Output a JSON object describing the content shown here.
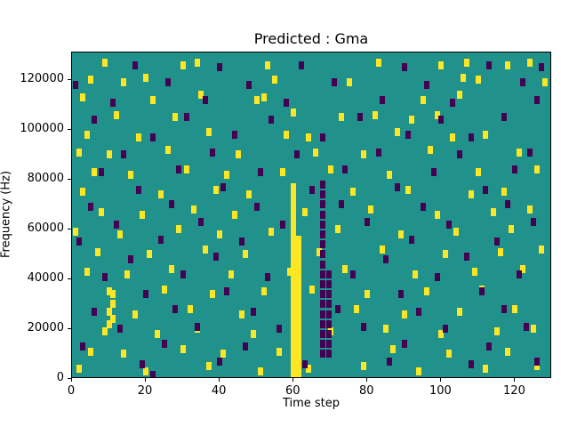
{
  "chart_data": {
    "type": "heatmap",
    "title": "Predicted : Gma",
    "xlabel": "Time step",
    "ylabel": "Frequency (Hz)",
    "xlim": [
      0,
      130
    ],
    "ylim": [
      0,
      131000
    ],
    "x_ticks": [
      0,
      20,
      40,
      60,
      80,
      100,
      120
    ],
    "y_ticks": [
      0,
      20000,
      40000,
      60000,
      80000,
      100000,
      120000
    ],
    "grid": false,
    "legend": "none",
    "colors": {
      "background_mid": "#21918c",
      "high": "#fde725",
      "low": "#440154",
      "axis": "#000000"
    },
    "cells": {
      "yellow": [
        [
          60,
          2000
        ],
        [
          60,
          5000
        ],
        [
          60,
          8000
        ],
        [
          60,
          11000
        ],
        [
          60,
          14000
        ],
        [
          60,
          17000
        ],
        [
          60,
          20000
        ],
        [
          60,
          23000
        ],
        [
          60,
          26000
        ],
        [
          60,
          29000
        ],
        [
          60,
          32000
        ],
        [
          60,
          35000
        ],
        [
          60,
          38000
        ],
        [
          60,
          41000
        ],
        [
          60,
          44000
        ],
        [
          60,
          47000
        ],
        [
          60,
          50000
        ],
        [
          60,
          53000
        ],
        [
          60,
          56000
        ],
        [
          60,
          59000
        ],
        [
          60,
          62000
        ],
        [
          60,
          65000
        ],
        [
          60,
          68000
        ],
        [
          60,
          71000
        ],
        [
          60,
          74000
        ],
        [
          60,
          77000
        ],
        [
          61.5,
          2000
        ],
        [
          61.5,
          5000
        ],
        [
          61.5,
          8000
        ],
        [
          61.5,
          11000
        ],
        [
          61.5,
          14000
        ],
        [
          61.5,
          17000
        ],
        [
          61.5,
          20000
        ],
        [
          61.5,
          23000
        ],
        [
          61.5,
          26000
        ],
        [
          61.5,
          29000
        ],
        [
          61.5,
          32000
        ],
        [
          61.5,
          35000
        ],
        [
          61.5,
          38000
        ],
        [
          61.5,
          41000
        ],
        [
          61.5,
          44000
        ],
        [
          61.5,
          47000
        ],
        [
          61.5,
          50000
        ],
        [
          61.5,
          53000
        ],
        [
          61.5,
          56000
        ],
        [
          9,
          127000
        ],
        [
          30,
          126000
        ],
        [
          34,
          127000
        ],
        [
          53,
          126000
        ],
        [
          83,
          127000
        ],
        [
          100,
          126000
        ],
        [
          107,
          127000
        ],
        [
          118,
          126000
        ],
        [
          124,
          127000
        ],
        [
          5,
          120000
        ],
        [
          14,
          119000
        ],
        [
          20,
          121000
        ],
        [
          55,
          120000
        ],
        [
          75,
          119000
        ],
        [
          106,
          121000
        ],
        [
          110,
          120000
        ],
        [
          128,
          119000
        ],
        [
          3,
          113000
        ],
        [
          22,
          112000
        ],
        [
          35,
          114000
        ],
        [
          50,
          112000
        ],
        [
          52,
          113000
        ],
        [
          95,
          112000
        ],
        [
          105,
          114000
        ],
        [
          12,
          106000
        ],
        [
          28,
          105000
        ],
        [
          60,
          107000
        ],
        [
          73,
          105000
        ],
        [
          82,
          106000
        ],
        [
          92,
          104000
        ],
        [
          99,
          106000
        ],
        [
          4,
          98000
        ],
        [
          18,
          97000
        ],
        [
          37,
          99000
        ],
        [
          58,
          98000
        ],
        [
          64,
          97000
        ],
        [
          88,
          99000
        ],
        [
          103,
          97000
        ],
        [
          112,
          98000
        ],
        [
          2,
          91000
        ],
        [
          10,
          90000
        ],
        [
          26,
          92000
        ],
        [
          45,
          90000
        ],
        [
          66,
          91000
        ],
        [
          79,
          90000
        ],
        [
          97,
          92000
        ],
        [
          121,
          91000
        ],
        [
          6,
          83000
        ],
        [
          16,
          82000
        ],
        [
          31,
          84000
        ],
        [
          42,
          82000
        ],
        [
          57,
          83000
        ],
        [
          70,
          84000
        ],
        [
          86,
          82000
        ],
        [
          110,
          83000
        ],
        [
          126,
          84000
        ],
        [
          3,
          75000
        ],
        [
          24,
          74000
        ],
        [
          39,
          76000
        ],
        [
          48,
          74000
        ],
        [
          76,
          75000
        ],
        [
          91,
          76000
        ],
        [
          108,
          74000
        ],
        [
          117,
          75000
        ],
        [
          8,
          67000
        ],
        [
          19,
          66000
        ],
        [
          33,
          68000
        ],
        [
          44,
          66000
        ],
        [
          63,
          67000
        ],
        [
          81,
          68000
        ],
        [
          99,
          66000
        ],
        [
          114,
          67000
        ],
        [
          124,
          68000
        ],
        [
          1,
          59000
        ],
        [
          13,
          58000
        ],
        [
          29,
          60000
        ],
        [
          40,
          58000
        ],
        [
          54,
          59000
        ],
        [
          72,
          60000
        ],
        [
          89,
          58000
        ],
        [
          104,
          59000
        ],
        [
          119,
          60000
        ],
        [
          7,
          51000
        ],
        [
          21,
          50000
        ],
        [
          36,
          52000
        ],
        [
          47,
          50000
        ],
        [
          67,
          51000
        ],
        [
          84,
          52000
        ],
        [
          101,
          50000
        ],
        [
          116,
          51000
        ],
        [
          127,
          52000
        ],
        [
          4,
          43000
        ],
        [
          15,
          42000
        ],
        [
          27,
          44000
        ],
        [
          43,
          42000
        ],
        [
          59,
          43000
        ],
        [
          74,
          44000
        ],
        [
          93,
          42000
        ],
        [
          109,
          43000
        ],
        [
          122,
          44000
        ],
        [
          10,
          35000
        ],
        [
          11,
          34000
        ],
        [
          25,
          36000
        ],
        [
          38,
          34000
        ],
        [
          52,
          35000
        ],
        [
          65,
          36000
        ],
        [
          80,
          34000
        ],
        [
          96,
          35000
        ],
        [
          111,
          36000
        ],
        [
          10,
          27000
        ],
        [
          11,
          30000
        ],
        [
          11,
          24000
        ],
        [
          17,
          26000
        ],
        [
          32,
          28000
        ],
        [
          46,
          26000
        ],
        [
          77,
          28000
        ],
        [
          90,
          26000
        ],
        [
          105,
          27000
        ],
        [
          120,
          28000
        ],
        [
          9,
          19000
        ],
        [
          10,
          22000
        ],
        [
          23,
          18000
        ],
        [
          34,
          20000
        ],
        [
          49,
          18000
        ],
        [
          70,
          19000
        ],
        [
          85,
          20000
        ],
        [
          100,
          18000
        ],
        [
          115,
          19000
        ],
        [
          125,
          20000
        ],
        [
          5,
          11000
        ],
        [
          14,
          10000
        ],
        [
          30,
          12000
        ],
        [
          41,
          10000
        ],
        [
          56,
          11000
        ],
        [
          87,
          12000
        ],
        [
          102,
          10000
        ],
        [
          118,
          11000
        ],
        [
          2,
          4000
        ],
        [
          20,
          3000
        ],
        [
          37,
          5000
        ],
        [
          51,
          3000
        ],
        [
          64,
          4000
        ],
        [
          79,
          5000
        ],
        [
          94,
          3000
        ],
        [
          112,
          4000
        ],
        [
          126,
          5000
        ]
      ],
      "purple": [
        [
          68,
          10000
        ],
        [
          68,
          14000
        ],
        [
          68,
          18000
        ],
        [
          68,
          22000
        ],
        [
          68,
          26000
        ],
        [
          68,
          30000
        ],
        [
          68,
          34000
        ],
        [
          68,
          38000
        ],
        [
          68,
          42000
        ],
        [
          68,
          46000
        ],
        [
          68,
          50000
        ],
        [
          68,
          54000
        ],
        [
          68,
          58000
        ],
        [
          68,
          62000
        ],
        [
          68,
          66000
        ],
        [
          68,
          70000
        ],
        [
          68,
          74000
        ],
        [
          68,
          78000
        ],
        [
          69.5,
          10000
        ],
        [
          69.5,
          14000
        ],
        [
          69.5,
          18000
        ],
        [
          69.5,
          22000
        ],
        [
          69.5,
          26000
        ],
        [
          69.5,
          30000
        ],
        [
          69.5,
          34000
        ],
        [
          69.5,
          38000
        ],
        [
          69.5,
          42000
        ],
        [
          17,
          126000
        ],
        [
          40,
          125000
        ],
        [
          62,
          126000
        ],
        [
          90,
          125000
        ],
        [
          113,
          126000
        ],
        [
          127,
          125000
        ],
        [
          1,
          118000
        ],
        [
          26,
          119000
        ],
        [
          48,
          118000
        ],
        [
          71,
          119000
        ],
        [
          96,
          118000
        ],
        [
          122,
          119000
        ],
        [
          11,
          111000
        ],
        [
          36,
          112000
        ],
        [
          58,
          111000
        ],
        [
          84,
          112000
        ],
        [
          103,
          111000
        ],
        [
          126,
          112000
        ],
        [
          6,
          104000
        ],
        [
          31,
          105000
        ],
        [
          54,
          104000
        ],
        [
          78,
          105000
        ],
        [
          100,
          104000
        ],
        [
          117,
          105000
        ],
        [
          22,
          97000
        ],
        [
          44,
          98000
        ],
        [
          68,
          97000
        ],
        [
          91,
          98000
        ],
        [
          108,
          97000
        ],
        [
          14,
          90000
        ],
        [
          38,
          91000
        ],
        [
          61,
          90000
        ],
        [
          83,
          91000
        ],
        [
          105,
          90000
        ],
        [
          124,
          91000
        ],
        [
          8,
          83000
        ],
        [
          29,
          84000
        ],
        [
          51,
          83000
        ],
        [
          74,
          84000
        ],
        [
          98,
          83000
        ],
        [
          120,
          84000
        ],
        [
          18,
          76000
        ],
        [
          41,
          77000
        ],
        [
          65,
          76000
        ],
        [
          88,
          77000
        ],
        [
          112,
          76000
        ],
        [
          5,
          69000
        ],
        [
          27,
          70000
        ],
        [
          50,
          69000
        ],
        [
          73,
          70000
        ],
        [
          95,
          69000
        ],
        [
          118,
          70000
        ],
        [
          12,
          62000
        ],
        [
          35,
          63000
        ],
        [
          57,
          62000
        ],
        [
          80,
          63000
        ],
        [
          102,
          62000
        ],
        [
          125,
          63000
        ],
        [
          2,
          55000
        ],
        [
          24,
          56000
        ],
        [
          46,
          55000
        ],
        [
          92,
          56000
        ],
        [
          115,
          55000
        ],
        [
          16,
          48000
        ],
        [
          39,
          49000
        ],
        [
          85,
          48000
        ],
        [
          107,
          49000
        ],
        [
          9,
          41000
        ],
        [
          30,
          42000
        ],
        [
          53,
          41000
        ],
        [
          76,
          42000
        ],
        [
          99,
          41000
        ],
        [
          121,
          42000
        ],
        [
          20,
          34000
        ],
        [
          42,
          35000
        ],
        [
          89,
          34000
        ],
        [
          111,
          35000
        ],
        [
          6,
          27000
        ],
        [
          28,
          28000
        ],
        [
          49,
          27000
        ],
        [
          72,
          28000
        ],
        [
          94,
          27000
        ],
        [
          117,
          28000
        ],
        [
          13,
          20000
        ],
        [
          34,
          21000
        ],
        [
          56,
          20000
        ],
        [
          79,
          21000
        ],
        [
          101,
          20000
        ],
        [
          123,
          21000
        ],
        [
          3,
          13000
        ],
        [
          25,
          14000
        ],
        [
          47,
          13000
        ],
        [
          90,
          14000
        ],
        [
          113,
          13000
        ],
        [
          19,
          6000
        ],
        [
          40,
          7000
        ],
        [
          63,
          6000
        ],
        [
          86,
          7000
        ],
        [
          108,
          6000
        ],
        [
          126,
          7000
        ],
        [
          22,
          1500
        ]
      ]
    }
  }
}
